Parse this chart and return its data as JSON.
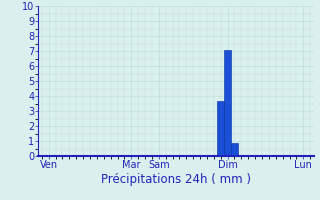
{
  "title": "",
  "xlabel": "Précipitations 24h ( mm )",
  "ylabel": "",
  "ylim": [
    0,
    10
  ],
  "yticks": [
    0,
    1,
    2,
    3,
    4,
    5,
    6,
    7,
    8,
    9,
    10
  ],
  "background_color": "#daf0ee",
  "plot_bg_color": "#daf0ee",
  "bar_color": "#1a4fd6",
  "bar_edge_color": "#0030a0",
  "grid_color_major": "#99c0c0",
  "grid_color_minor": "#c0dcdc",
  "axis_label_color": "#2222bb",
  "tick_color": "#2222bb",
  "spine_color": "#2222bb",
  "n_bars": 40,
  "bar_values": [
    0,
    0,
    0,
    0,
    0,
    0,
    0,
    0,
    0,
    0,
    0,
    0,
    0,
    0,
    0,
    0,
    0,
    0,
    0,
    0,
    0,
    0,
    0,
    0,
    0,
    0,
    3.7,
    7.1,
    0.9,
    0,
    0,
    0,
    0,
    0,
    0,
    0,
    0,
    0,
    0,
    0
  ],
  "xtick_positions": [
    1,
    13,
    17,
    27,
    38
  ],
  "xtick_labels": [
    "Ven",
    "Mar",
    "Sam",
    "Dim",
    "Lun"
  ],
  "xlabel_fontsize": 8.5,
  "tick_fontsize": 7
}
